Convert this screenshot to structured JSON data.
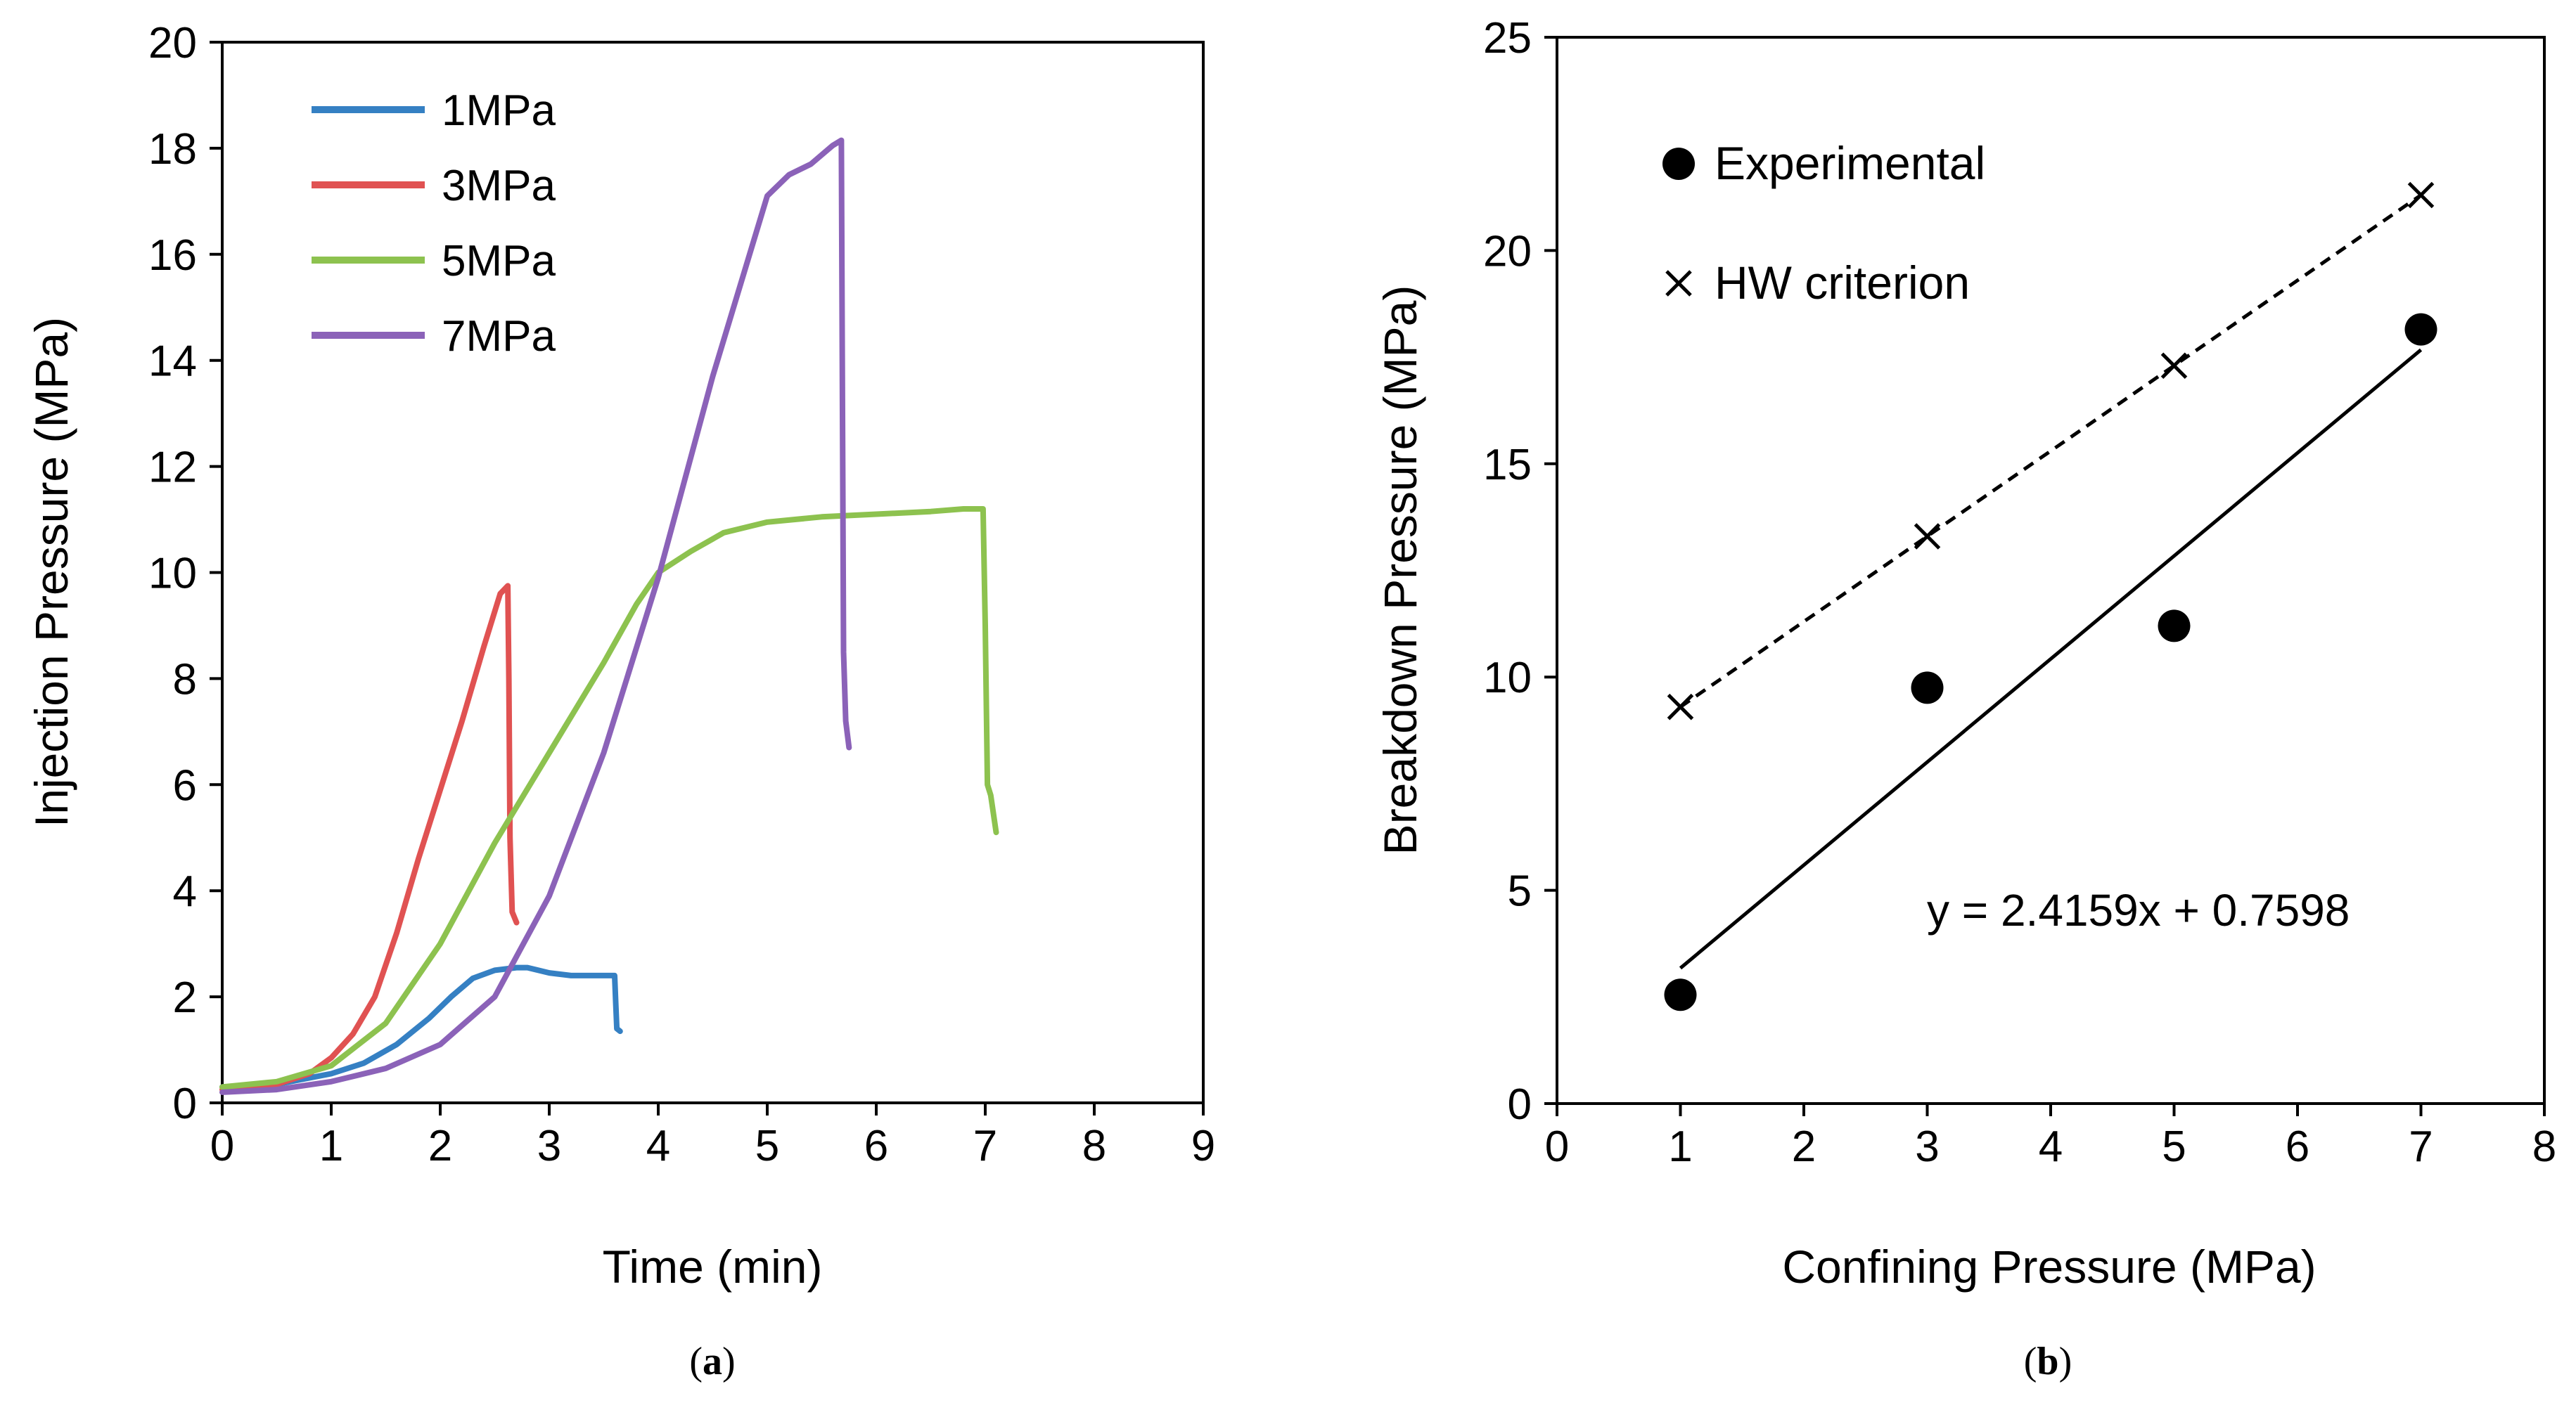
{
  "chart_data": [
    {
      "type": "line",
      "panel_label": "a",
      "xlabel": "Time (min)",
      "ylabel": "Injection Pressure (MPa)",
      "xlim": [
        0,
        9
      ],
      "ylim": [
        0,
        20
      ],
      "xticks": [
        0,
        1,
        2,
        3,
        4,
        5,
        6,
        7,
        8,
        9
      ],
      "yticks": [
        0,
        2,
        4,
        6,
        8,
        10,
        12,
        14,
        16,
        18,
        20
      ],
      "legend_position": "top-left",
      "series": [
        {
          "name": "1MPa",
          "color": "#3580c3",
          "x": [
            0,
            0.5,
            1.0,
            1.3,
            1.6,
            1.9,
            2.1,
            2.3,
            2.5,
            2.7,
            2.8,
            3.0,
            3.2,
            3.4,
            3.6,
            3.61,
            3.62,
            3.65
          ],
          "y": [
            0.3,
            0.35,
            0.55,
            0.75,
            1.1,
            1.6,
            2.0,
            2.35,
            2.5,
            2.55,
            2.55,
            2.45,
            2.4,
            2.4,
            2.4,
            1.9,
            1.4,
            1.35
          ]
        },
        {
          "name": "3MPa",
          "color": "#e05252",
          "x": [
            0,
            0.5,
            0.8,
            1.0,
            1.2,
            1.4,
            1.6,
            1.8,
            2.0,
            2.2,
            2.4,
            2.55,
            2.62,
            2.63,
            2.64,
            2.66,
            2.7
          ],
          "y": [
            0.25,
            0.35,
            0.55,
            0.85,
            1.3,
            2.0,
            3.2,
            4.6,
            5.9,
            7.2,
            8.6,
            9.6,
            9.75,
            8.0,
            5.0,
            3.6,
            3.4
          ]
        },
        {
          "name": "5MPa",
          "color": "#8dc24f",
          "x": [
            0,
            0.5,
            1.0,
            1.5,
            2.0,
            2.5,
            3.0,
            3.5,
            3.8,
            4.0,
            4.3,
            4.6,
            5.0,
            5.5,
            6.0,
            6.5,
            6.8,
            6.98,
            7.0,
            7.02,
            7.05,
            7.1
          ],
          "y": [
            0.3,
            0.4,
            0.7,
            1.5,
            3.0,
            4.9,
            6.6,
            8.3,
            9.4,
            10.0,
            10.4,
            10.75,
            10.95,
            11.05,
            11.1,
            11.15,
            11.2,
            11.2,
            9.0,
            6.0,
            5.8,
            5.1
          ]
        },
        {
          "name": "7MPa",
          "color": "#8b62b8",
          "x": [
            0,
            0.5,
            1.0,
            1.5,
            2.0,
            2.5,
            3.0,
            3.5,
            4.0,
            4.5,
            5.0,
            5.2,
            5.4,
            5.6,
            5.68,
            5.69,
            5.7,
            5.72,
            5.75
          ],
          "y": [
            0.2,
            0.25,
            0.4,
            0.65,
            1.1,
            2.0,
            3.9,
            6.6,
            9.9,
            13.7,
            17.1,
            17.5,
            17.7,
            18.05,
            18.15,
            13.0,
            8.5,
            7.2,
            6.7
          ]
        }
      ]
    },
    {
      "type": "scatter",
      "panel_label": "b",
      "xlabel": "Confining Pressure (MPa)",
      "ylabel": "Breakdown Pressure (MPa)",
      "xlim": [
        0,
        8
      ],
      "ylim": [
        0,
        25
      ],
      "xticks": [
        0,
        1,
        2,
        3,
        4,
        5,
        6,
        7,
        8
      ],
      "yticks": [
        0,
        5,
        10,
        15,
        20,
        25
      ],
      "legend_position": "top-left",
      "annotation": "y = 2.4159x + 0.7598",
      "trendline": {
        "slope": 2.4159,
        "intercept": 0.7598,
        "x_range": [
          1,
          7
        ]
      },
      "series": [
        {
          "name": "Experimental",
          "marker": "circle",
          "x": [
            1,
            3,
            5,
            7
          ],
          "y": [
            2.55,
            9.75,
            11.2,
            18.15
          ]
        },
        {
          "name": "HW criterion",
          "marker": "x",
          "line": "dashed",
          "x": [
            1,
            3,
            5,
            7
          ],
          "y": [
            9.3,
            13.3,
            17.3,
            21.3
          ]
        }
      ]
    }
  ]
}
